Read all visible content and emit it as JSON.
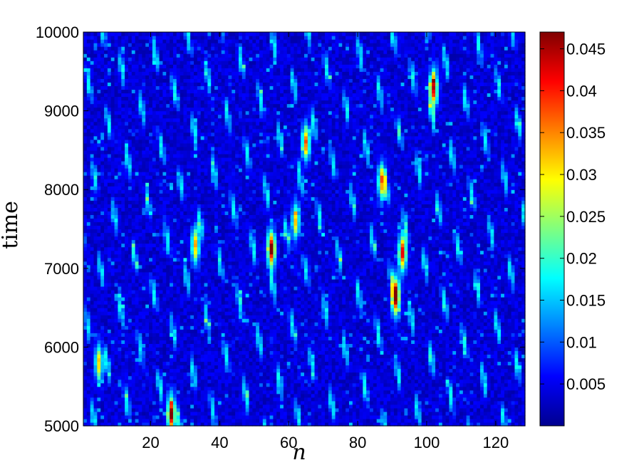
{
  "chart_data": {
    "type": "heatmap",
    "title": "",
    "xlabel": "n",
    "ylabel": "time",
    "xlim": [
      1,
      128
    ],
    "ylim": [
      5000,
      10000
    ],
    "x_ticks": [
      "20",
      "40",
      "60",
      "80",
      "100",
      "120"
    ],
    "y_ticks": [
      "5000",
      "6000",
      "7000",
      "8000",
      "9000",
      "10000"
    ],
    "colormap": "jet",
    "color_range": [
      0,
      0.047
    ],
    "colorbar_ticks": [
      "0.005",
      "0.01",
      "0.015",
      "0.02",
      "0.025",
      "0.03",
      "0.035",
      "0.04",
      "0.045"
    ],
    "n_sites": 128,
    "peaks": [
      {
        "n": 26,
        "time": 5150,
        "value": 0.043
      },
      {
        "n": 55,
        "time": 7250,
        "value": 0.044
      },
      {
        "n": 91,
        "time": 6650,
        "value": 0.045
      },
      {
        "n": 93,
        "time": 7200,
        "value": 0.038
      },
      {
        "n": 102,
        "time": 9300,
        "value": 0.041
      },
      {
        "n": 65,
        "time": 8600,
        "value": 0.033
      },
      {
        "n": 87,
        "time": 8100,
        "value": 0.031
      },
      {
        "n": 33,
        "time": 7300,
        "value": 0.03
      },
      {
        "n": 5,
        "time": 5800,
        "value": 0.028
      },
      {
        "n": 62,
        "time": 7600,
        "value": 0.027
      }
    ],
    "grid": false,
    "colorbar": "right"
  }
}
